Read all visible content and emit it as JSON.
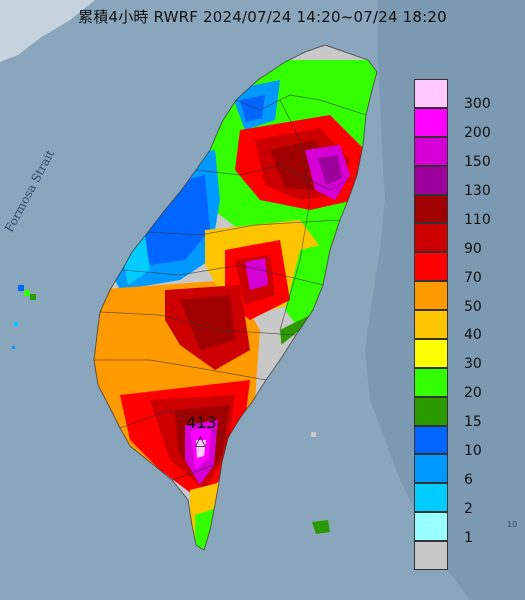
{
  "header": {
    "title": "累積4小時 RWRF 2024/07/24 14:20~07/24 18:20"
  },
  "map": {
    "sea_label": "Formosa Strait",
    "max_value_label": "413",
    "max_marker_symbol": "△",
    "edge_label": "10",
    "background_color": "#7f9fb5",
    "land_color": "#a9bfd0"
  },
  "legend": {
    "levels": [
      {
        "label": "300",
        "color": "#ffc8ff"
      },
      {
        "label": "200",
        "color": "#ff00ff"
      },
      {
        "label": "150",
        "color": "#d400d6"
      },
      {
        "label": "130",
        "color": "#9e009e"
      },
      {
        "label": "110",
        "color": "#a00000"
      },
      {
        "label": "90",
        "color": "#cc0000"
      },
      {
        "label": "70",
        "color": "#ff0000"
      },
      {
        "label": "50",
        "color": "#ff9a00"
      },
      {
        "label": "40",
        "color": "#ffc400"
      },
      {
        "label": "30",
        "color": "#ffff00"
      },
      {
        "label": "20",
        "color": "#33ff00"
      },
      {
        "label": "15",
        "color": "#2a9a00"
      },
      {
        "label": "10",
        "color": "#0066ff"
      },
      {
        "label": "6",
        "color": "#0099ff"
      },
      {
        "label": "2",
        "color": "#00ccff"
      },
      {
        "label": "1",
        "color": "#99ffff"
      },
      {
        "label": "",
        "color": "#c8c8c8"
      }
    ]
  }
}
